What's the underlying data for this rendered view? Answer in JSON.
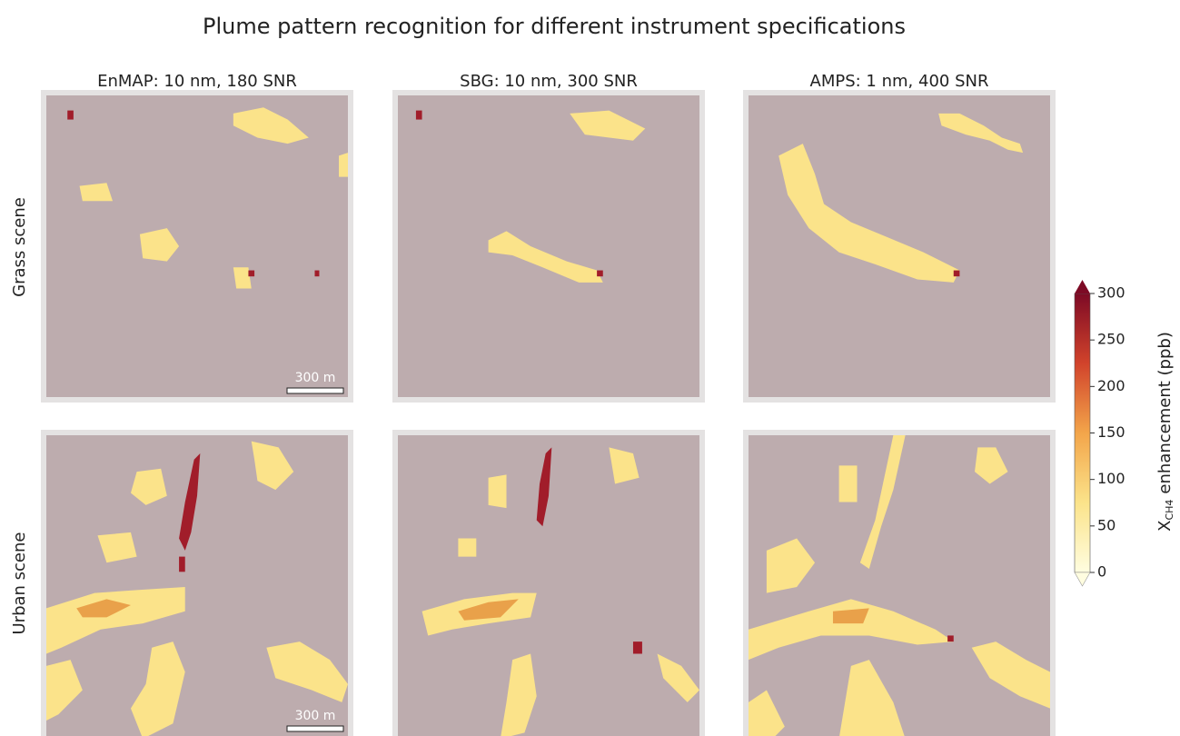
{
  "title": "Plume pattern recognition for different instrument specifications",
  "columns": [
    "EnMAP: 10 nm, 180 SNR",
    "SBG: 10 nm, 300 SNR",
    "AMPS: 1 nm, 400 SNR"
  ],
  "rows": [
    "Grass scene",
    "Urban scene"
  ],
  "scale_bar": "300 m",
  "colorbar": {
    "symbol": "X",
    "subscript": "CH4",
    "label": "enhancement  (ppb)",
    "lim": [
      0,
      300
    ],
    "ticks": [
      0,
      50,
      100,
      150,
      200,
      250,
      300
    ]
  }
}
